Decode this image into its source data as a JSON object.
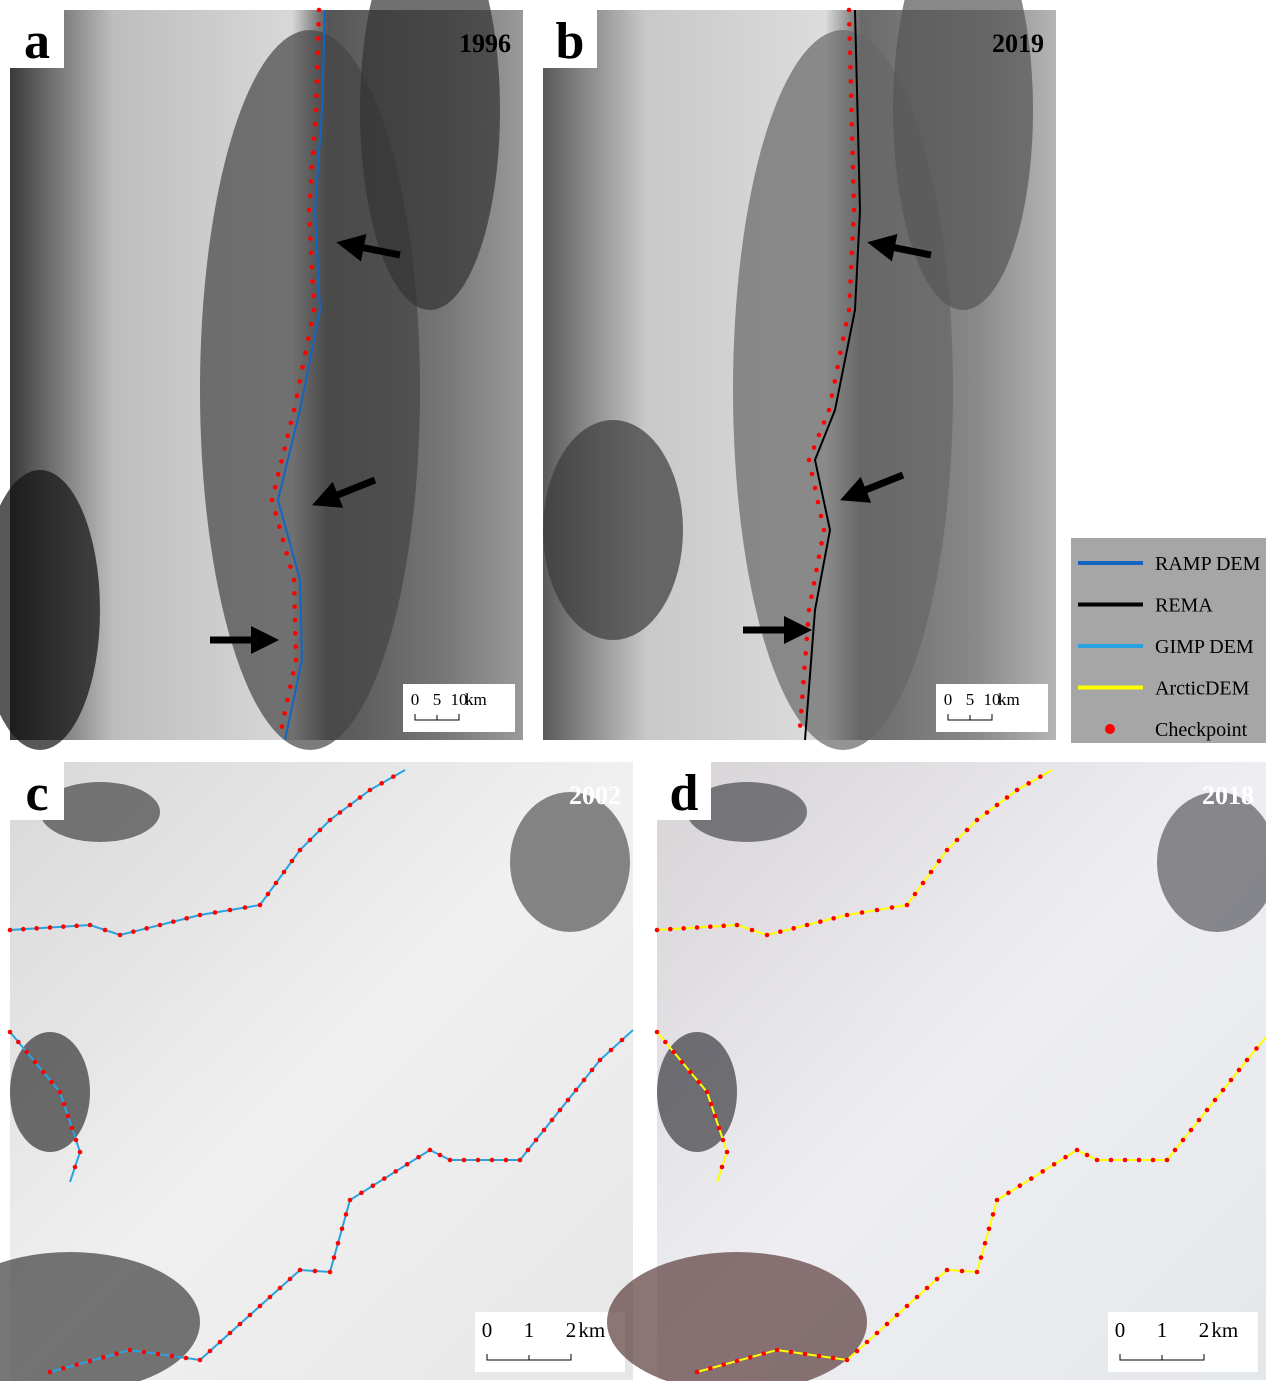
{
  "panels": [
    {
      "letter": "a",
      "year": "1996",
      "scale_bar": {
        "labels": [
          "0",
          "5",
          "10"
        ],
        "unit": "km"
      }
    },
    {
      "letter": "b",
      "year": "2019",
      "scale_bar": {
        "labels": [
          "0",
          "5",
          "10"
        ],
        "unit": "km"
      }
    },
    {
      "letter": "c",
      "year": "2002",
      "scale_bar": {
        "labels": [
          "0",
          "1",
          "2"
        ],
        "unit": "km"
      }
    },
    {
      "letter": "d",
      "year": "2018",
      "scale_bar": {
        "labels": [
          "0",
          "1",
          "2"
        ],
        "unit": "km"
      }
    }
  ],
  "legend": [
    {
      "label": "RAMP DEM",
      "color": "#1565c0",
      "kind": "line"
    },
    {
      "label": "REMA",
      "color": "#000000",
      "kind": "line"
    },
    {
      "label": "GIMP DEM",
      "color": "#29a3e0",
      "kind": "line"
    },
    {
      "label": "ArcticDEM",
      "color": "#ffff00",
      "kind": "line"
    },
    {
      "label": "Checkpoint",
      "color": "#ff0000",
      "kind": "dot"
    }
  ]
}
